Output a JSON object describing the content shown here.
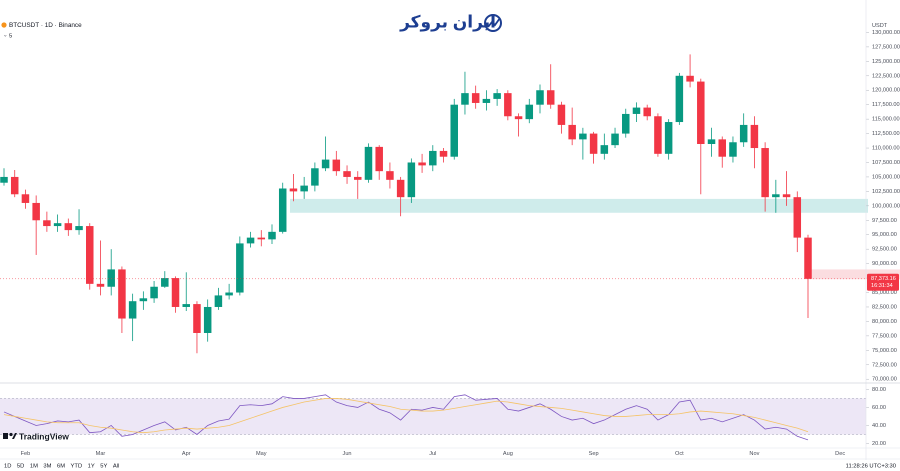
{
  "ui": {
    "logo_text": "ایران بروکر",
    "indicator_count": "5",
    "brand": "TradingView",
    "timeframes": [
      "1D",
      "5D",
      "1M",
      "3M",
      "6M",
      "YTD",
      "1Y",
      "5Y",
      "All"
    ],
    "clock": "11:28:26 UTC+3:30"
  },
  "chart_data": [
    {
      "type": "candlestick",
      "title": "BTCUSDT · 1D · Binance",
      "y_unit": "USDT",
      "categories": [
        null,
        null,
        "Feb",
        null,
        null,
        null,
        null,
        null,
        null,
        "Mar",
        null,
        null,
        null,
        null,
        null,
        null,
        null,
        "Apr",
        null,
        null,
        null,
        null,
        null,
        null,
        "May",
        null,
        null,
        null,
        null,
        null,
        null,
        null,
        "Jun",
        null,
        null,
        null,
        null,
        null,
        null,
        null,
        "Jul",
        null,
        null,
        null,
        null,
        null,
        null,
        "Aug",
        null,
        null,
        null,
        null,
        null,
        null,
        null,
        "Sep",
        null,
        null,
        null,
        null,
        null,
        null,
        null,
        "Oct",
        null,
        null,
        null,
        null,
        null,
        null,
        "Nov",
        null,
        null,
        null,
        null,
        null,
        null,
        null,
        "Dec"
      ],
      "open": [
        104000,
        105000,
        102000,
        100500,
        97500,
        96500,
        97000,
        95800,
        96500,
        86500,
        86000,
        89000,
        80500,
        83500,
        84000,
        86000,
        87500,
        82500,
        83000,
        78000,
        82500,
        84500,
        85000,
        93500,
        94500,
        94200,
        95500,
        103000,
        102500,
        103500,
        106500,
        108000,
        106000,
        105000,
        104500,
        110200,
        106000,
        104500,
        101500,
        107500,
        107000,
        109500,
        108500,
        117500,
        119500,
        117800,
        118500,
        119500,
        115500,
        115000,
        117500,
        120000,
        117500,
        114000,
        111500,
        112500,
        109000,
        110500,
        112500,
        115900,
        117000,
        115500,
        109000,
        114500,
        122500,
        121500,
        110700,
        111500,
        108500,
        111000,
        114000,
        110000,
        101500,
        102000,
        101500,
        94500,
        null,
        null,
        null
      ],
      "high": [
        106500,
        106200,
        102800,
        101800,
        99000,
        98500,
        97800,
        99400,
        97000,
        94000,
        92500,
        89500,
        84800,
        85200,
        87000,
        88700,
        87800,
        88500,
        83500,
        83800,
        85800,
        86500,
        94700,
        95500,
        95800,
        96800,
        104000,
        105500,
        105000,
        107500,
        112000,
        109500,
        107000,
        106000,
        110800,
        110500,
        107500,
        105000,
        108200,
        109000,
        110500,
        110000,
        118500,
        123200,
        120800,
        120000,
        120200,
        120000,
        116000,
        118500,
        121000,
        124500,
        118000,
        117000,
        113500,
        112800,
        112500,
        113500,
        116800,
        117900,
        117500,
        116000,
        115000,
        123000,
        126200,
        122000,
        113500,
        112000,
        112000,
        116000,
        115500,
        111000,
        104500,
        106000,
        102500,
        95000,
        null,
        null,
        null
      ],
      "low": [
        103500,
        101500,
        99500,
        91500,
        95500,
        95500,
        94800,
        95000,
        85500,
        84500,
        84500,
        78000,
        76600,
        82000,
        83200,
        85800,
        81500,
        81800,
        74500,
        76500,
        82000,
        83800,
        84500,
        92800,
        93000,
        93400,
        95200,
        100800,
        101200,
        102500,
        106000,
        105200,
        103800,
        101200,
        104000,
        104500,
        103000,
        98200,
        100500,
        105700,
        106000,
        107500,
        108000,
        115800,
        116800,
        116500,
        117300,
        114800,
        112000,
        114300,
        116000,
        116800,
        112500,
        110500,
        108000,
        107300,
        108000,
        110000,
        111800,
        114500,
        114800,
        108500,
        108000,
        114000,
        120500,
        102000,
        108500,
        106600,
        107500,
        110200,
        106500,
        99000,
        98800,
        100000,
        92000,
        80600,
        null,
        null,
        null
      ],
      "close": [
        105000,
        102000,
        100500,
        97500,
        96500,
        97000,
        95800,
        96500,
        86500,
        86000,
        89000,
        80500,
        83500,
        84000,
        86000,
        87500,
        82500,
        83000,
        78000,
        82500,
        84500,
        85000,
        93500,
        94500,
        94200,
        95500,
        103000,
        102500,
        103500,
        106500,
        108000,
        106000,
        105000,
        104500,
        110200,
        106000,
        104500,
        101500,
        107500,
        107000,
        109500,
        108500,
        117500,
        119500,
        117800,
        118500,
        119500,
        115500,
        115000,
        117500,
        120000,
        117500,
        114000,
        111500,
        112500,
        109000,
        110500,
        112500,
        115900,
        117000,
        115500,
        109000,
        114500,
        122500,
        121500,
        110700,
        111500,
        108500,
        111000,
        114000,
        110000,
        101500,
        102000,
        101500,
        94500,
        87373.16,
        null,
        null,
        null
      ],
      "up_color": "#089981",
      "down_color": "#f23645",
      "last_price": {
        "value": 87373.16,
        "label": "87,373.16"
      },
      "countdown": "16:31:34",
      "zones": [
        {
          "low": 98800,
          "high": 101200,
          "color": "#cfeceb"
        },
        {
          "low": 87300,
          "high": 89000,
          "color": "#fbdde0"
        }
      ],
      "ylim": [
        69000,
        132500
      ],
      "yticks": [
        {
          "value": 70000,
          "label": "70,000.00"
        },
        {
          "value": 72500,
          "label": "72,500.00"
        },
        {
          "value": 75000,
          "label": "75,000.00"
        },
        {
          "value": 77500,
          "label": "77,500.00"
        },
        {
          "value": 80000,
          "label": "80,000.00"
        },
        {
          "value": 82500,
          "label": "82,500.00"
        },
        {
          "value": 85000,
          "label": "85,000.00"
        },
        {
          "value": 87500,
          "label": "87,500.00"
        },
        {
          "value": 90000,
          "label": "90,000.00"
        },
        {
          "value": 92500,
          "label": "92,500.00"
        },
        {
          "value": 95000,
          "label": "95,000.00"
        },
        {
          "value": 97500,
          "label": "97,500.00"
        },
        {
          "value": 100000,
          "label": "100,000.00"
        },
        {
          "value": 102500,
          "label": "102,500.00"
        },
        {
          "value": 105000,
          "label": "105,000.00"
        },
        {
          "value": 107500,
          "label": "107,500.00"
        },
        {
          "value": 110000,
          "label": "110,000.00"
        },
        {
          "value": 112500,
          "label": "112,500.00"
        },
        {
          "value": 115000,
          "label": "115,000.00"
        },
        {
          "value": 117500,
          "label": "117,500.00"
        },
        {
          "value": 120000,
          "label": "120,000.00"
        },
        {
          "value": 122500,
          "label": "122,500.00"
        },
        {
          "value": 125000,
          "label": "125,000.00"
        },
        {
          "value": 127500,
          "label": "127,500.00"
        },
        {
          "value": 130000,
          "label": "130,000.00"
        }
      ]
    },
    {
      "type": "line",
      "series": [
        {
          "name": "RSI",
          "color": "#7e57c2",
          "values": [
            55,
            50,
            45,
            40,
            42,
            45,
            44,
            46,
            32,
            33,
            40,
            28,
            30,
            35,
            40,
            44,
            35,
            38,
            30,
            40,
            45,
            47,
            62,
            63,
            62,
            64,
            72,
            70,
            70,
            72,
            74,
            66,
            62,
            60,
            66,
            58,
            54,
            46,
            58,
            57,
            60,
            58,
            72,
            74,
            68,
            69,
            70,
            58,
            56,
            60,
            64,
            58,
            50,
            46,
            48,
            42,
            46,
            52,
            58,
            62,
            58,
            46,
            52,
            66,
            68,
            46,
            48,
            44,
            48,
            52,
            46,
            36,
            38,
            36,
            28,
            24,
            null,
            null,
            null
          ]
        },
        {
          "name": "RSI MA",
          "color": "#f5c366",
          "values": [
            52,
            50,
            48,
            46,
            44,
            43,
            43,
            43,
            40,
            38,
            37,
            35,
            33,
            32,
            33,
            35,
            36,
            37,
            36,
            37,
            38,
            40,
            44,
            48,
            52,
            56,
            60,
            63,
            66,
            68,
            70,
            70,
            69,
            67,
            65,
            63,
            61,
            58,
            57,
            56,
            56,
            57,
            59,
            61,
            63,
            65,
            67,
            66,
            64,
            62,
            61,
            60,
            59,
            57,
            55,
            53,
            51,
            50,
            50,
            51,
            52,
            52,
            52,
            53,
            55,
            56,
            55,
            54,
            53,
            51,
            49,
            46,
            43,
            40,
            37,
            33,
            null,
            null,
            null
          ]
        }
      ],
      "band": [
        30,
        70
      ],
      "band_color": "#ede7f6",
      "ylim": [
        15,
        86
      ],
      "yticks": [
        {
          "value": 20,
          "label": "20.00"
        },
        {
          "value": 40,
          "label": "40.00"
        },
        {
          "value": 60,
          "label": "60.00"
        },
        {
          "value": 80,
          "label": "80.00"
        }
      ]
    }
  ]
}
